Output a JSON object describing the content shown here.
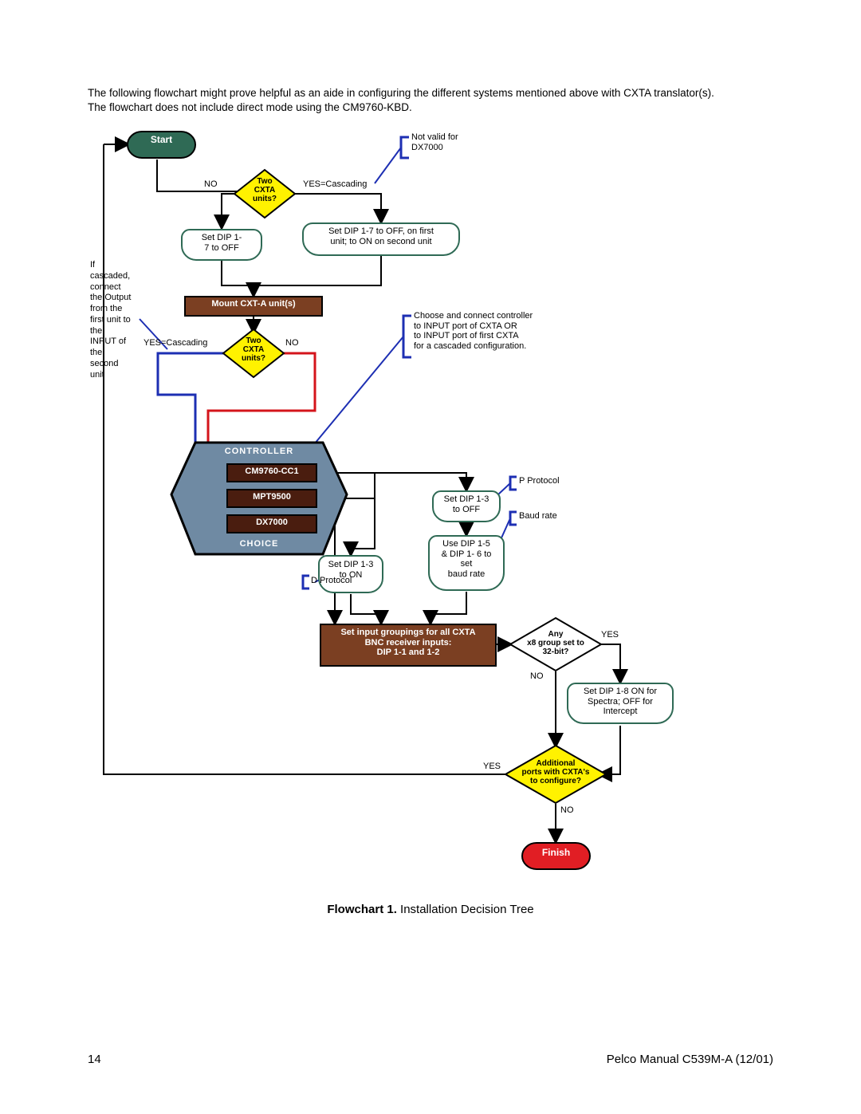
{
  "page": {
    "intro_line1": "The following flowchart might prove helpful as an aide in configuring the different systems mentioned above with CXTA translator(s).",
    "intro_line2": "The flowchart does not include direct mode using the CM9760-KBD.",
    "caption_bold": "Flowchart 1.",
    "caption_rest": " Installation Decision Tree",
    "page_number": "14",
    "manual_ref": "Pelco Manual C539M-A (12/01)"
  },
  "colors": {
    "start_fill": "#2f6a55",
    "start_stroke": "#000000",
    "finish_fill": "#e11e24",
    "decision_fill": "#fff200",
    "decision_stroke": "#000000",
    "process_brown": "#7b3f22",
    "process_brown_stroke": "#000000",
    "controller_fill": "#6f8aa3",
    "controller_stroke": "#000000",
    "controller_inner": "#4a1d0f",
    "panel_stroke": "#2f6a55",
    "black": "#000000",
    "red": "#d4141b",
    "blue": "#1d2fb3",
    "white": "#ffffff"
  },
  "nodes": {
    "start": "Start",
    "finish": "Finish",
    "q_two_cxta1": "Two\nCXTA\nunits?",
    "q_two_cxta2": "Two\nCXTA\nunits?",
    "q_any32": "Any\nx8 group set to\n32-bit?",
    "q_addports": "Additional\nports with CXTA's\nto configure?",
    "p_setdip17off": "Set DIP 1-\n7 to OFF",
    "p_setdip17both": "Set DIP 1-7 to OFF, on first\nunit; to ON on second  unit",
    "p_mount": "Mount CXT-A unit(s)",
    "p_setdip13on": "Set DIP 1-3\nto ON",
    "p_setdip13off": "Set DIP 1-3\nto OFF",
    "p_usedip15": "Use DIP 1-5\n& DIP 1- 6  to\nset\nbaud  rate",
    "p_inputgroup": "Set input groupings for all CXTA\nBNC receiver inputs:\nDIP 1-1 and 1-2",
    "p_setdip18": "Set DIP 1-8 ON for\nSpectra; OFF for\nIntercept",
    "controller_header": "CONTROLLER",
    "controller_footer": "CHOICE",
    "ctrl1": "CM9760-CC1",
    "ctrl2": "MPT9500",
    "ctrl3": "DX7000"
  },
  "labels": {
    "no": "NO",
    "yes": "YES",
    "yes_cascading": "YES=Cascading",
    "if_cascaded": "If\ncascaded,\nconnect\nthe Output\nfrom the\nfirst unit to\nthe\nINPUT of\nthe\nsecond\nunit",
    "not_valid": "Not valid for\nDX7000",
    "choose_connect": "Choose and connect controller\nto INPUT port of CXTA OR\nto INPUT port of first CXTA\nfor a cascaded configuration.",
    "d_protocol": "D Protocol",
    "p_protocol": "P Protocol",
    "baud_rate": "Baud rate"
  },
  "style": {
    "line_w_thin": 2,
    "line_w_thick": 3,
    "arrow_size": 8,
    "font_small": 11,
    "font_med": 12,
    "font_node": 12
  }
}
